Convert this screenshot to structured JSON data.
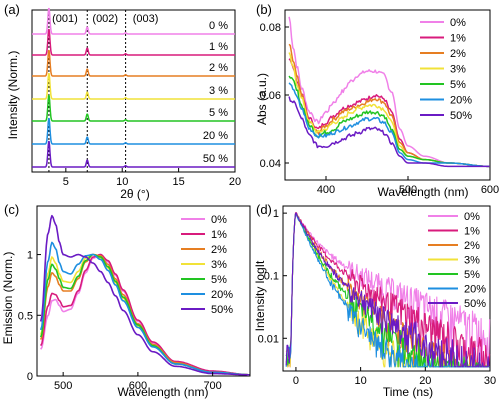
{
  "colors": [
    "#f080e8",
    "#d81b7c",
    "#e67e22",
    "#f1e238",
    "#22c422",
    "#1e8fe0",
    "#6a1bc4"
  ],
  "chart_data": [
    {
      "panel": "(a)",
      "type": "line",
      "xlabel": "2θ (°)",
      "ylabel": "Intensity (Norm.)",
      "xlim": [
        2,
        20
      ],
      "xticks": [
        5,
        10,
        15,
        20
      ],
      "peaks": [
        {
          "x": 3.5,
          "label": "(001)"
        },
        {
          "x": 6.9,
          "label": "(002)"
        },
        {
          "x": 10.3,
          "label": "(003)"
        }
      ],
      "series": [
        {
          "name": "0 %"
        },
        {
          "name": "1 %"
        },
        {
          "name": "2 %"
        },
        {
          "name": "3 %"
        },
        {
          "name": "5 %"
        },
        {
          "name": "20 %"
        },
        {
          "name": "50 %"
        }
      ]
    },
    {
      "panel": "(b)",
      "type": "line",
      "xlabel": "Wavelength (nm)",
      "ylabel": "Abs (a.u.)",
      "xlim": [
        350,
        600
      ],
      "ylim": [
        0.035,
        0.085
      ],
      "xticks": [
        400,
        500,
        600
      ],
      "yticks": [
        0.04,
        0.06,
        0.08
      ],
      "legend": "top-right",
      "series": [
        {
          "name": "0%",
          "x": [
            355,
            360,
            365,
            370,
            380,
            390,
            400,
            410,
            420,
            430,
            440,
            450,
            460,
            470,
            480,
            490,
            500,
            520,
            550,
            600
          ],
          "values": [
            0.083,
            0.074,
            0.068,
            0.062,
            0.055,
            0.052,
            0.055,
            0.058,
            0.061,
            0.064,
            0.066,
            0.067,
            0.067,
            0.066,
            0.061,
            0.05,
            0.045,
            0.042,
            0.04,
            0.039
          ]
        },
        {
          "name": "1%",
          "x": [
            355,
            360,
            365,
            370,
            380,
            390,
            400,
            410,
            420,
            430,
            440,
            450,
            460,
            470,
            480,
            490,
            500,
            520,
            550,
            600
          ],
          "values": [
            0.071,
            0.068,
            0.064,
            0.06,
            0.053,
            0.05,
            0.052,
            0.054,
            0.056,
            0.057,
            0.058,
            0.059,
            0.06,
            0.059,
            0.055,
            0.047,
            0.043,
            0.041,
            0.04,
            0.039
          ]
        },
        {
          "name": "2%",
          "x": [
            355,
            360,
            365,
            370,
            380,
            390,
            400,
            410,
            420,
            430,
            440,
            450,
            460,
            470,
            480,
            490,
            500,
            520,
            550,
            600
          ],
          "values": [
            0.075,
            0.07,
            0.065,
            0.06,
            0.052,
            0.049,
            0.051,
            0.053,
            0.055,
            0.056,
            0.057,
            0.058,
            0.059,
            0.058,
            0.054,
            0.046,
            0.043,
            0.041,
            0.04,
            0.039
          ]
        },
        {
          "name": "3%",
          "x": [
            355,
            360,
            365,
            370,
            380,
            390,
            400,
            410,
            420,
            430,
            440,
            450,
            460,
            470,
            480,
            490,
            500,
            520,
            550,
            600
          ],
          "values": [
            0.072,
            0.068,
            0.063,
            0.059,
            0.052,
            0.049,
            0.05,
            0.052,
            0.053,
            0.055,
            0.056,
            0.057,
            0.057,
            0.056,
            0.052,
            0.045,
            0.042,
            0.041,
            0.04,
            0.039
          ]
        },
        {
          "name": "5%",
          "x": [
            355,
            360,
            365,
            370,
            380,
            390,
            400,
            410,
            420,
            430,
            440,
            450,
            460,
            470,
            480,
            490,
            500,
            520,
            550,
            600
          ],
          "values": [
            0.066,
            0.064,
            0.061,
            0.057,
            0.051,
            0.048,
            0.049,
            0.05,
            0.052,
            0.053,
            0.054,
            0.055,
            0.055,
            0.054,
            0.05,
            0.044,
            0.042,
            0.041,
            0.04,
            0.039
          ]
        },
        {
          "name": "20%",
          "x": [
            355,
            360,
            365,
            370,
            380,
            390,
            400,
            410,
            420,
            430,
            440,
            450,
            460,
            470,
            480,
            490,
            500,
            520,
            550,
            600
          ],
          "values": [
            0.063,
            0.062,
            0.059,
            0.056,
            0.05,
            0.048,
            0.048,
            0.049,
            0.05,
            0.051,
            0.052,
            0.053,
            0.053,
            0.052,
            0.049,
            0.043,
            0.041,
            0.04,
            0.04,
            0.039
          ]
        },
        {
          "name": "50%",
          "x": [
            355,
            360,
            365,
            370,
            380,
            390,
            400,
            410,
            420,
            430,
            440,
            450,
            460,
            470,
            480,
            490,
            500,
            520,
            550,
            600
          ],
          "values": [
            0.059,
            0.058,
            0.056,
            0.053,
            0.048,
            0.045,
            0.045,
            0.046,
            0.047,
            0.048,
            0.049,
            0.05,
            0.05,
            0.049,
            0.046,
            0.042,
            0.04,
            0.04,
            0.039,
            0.039
          ]
        }
      ]
    },
    {
      "panel": "(c)",
      "type": "line",
      "xlabel": "Wavelength (nm)",
      "ylabel": "Emission (Norm.)",
      "xlim": [
        465,
        750
      ],
      "ylim": [
        0,
        1.4
      ],
      "xticks": [
        500,
        600,
        700
      ],
      "yticks": [
        0,
        0.5,
        1
      ],
      "yticklabels": [
        "0",
        "0.5",
        "1"
      ],
      "legend": "top-right",
      "series": [
        {
          "name": "0%",
          "x": [
            470,
            480,
            485,
            490,
            495,
            500,
            510,
            520,
            530,
            540,
            550,
            560,
            570,
            580,
            600,
            620,
            650,
            700,
            750
          ],
          "values": [
            0.22,
            0.5,
            0.62,
            0.63,
            0.58,
            0.53,
            0.55,
            0.68,
            0.85,
            0.97,
            1.0,
            0.94,
            0.83,
            0.7,
            0.45,
            0.27,
            0.12,
            0.04,
            0.01
          ]
        },
        {
          "name": "1%",
          "x": [
            470,
            480,
            485,
            490,
            495,
            500,
            510,
            520,
            530,
            540,
            550,
            560,
            570,
            580,
            600,
            620,
            650,
            700,
            750
          ],
          "values": [
            0.25,
            0.58,
            0.68,
            0.67,
            0.62,
            0.57,
            0.58,
            0.7,
            0.87,
            0.98,
            1.0,
            0.95,
            0.84,
            0.71,
            0.46,
            0.28,
            0.12,
            0.04,
            0.01
          ]
        },
        {
          "name": "2%",
          "x": [
            470,
            480,
            485,
            490,
            495,
            500,
            510,
            520,
            530,
            540,
            550,
            560,
            570,
            580,
            600,
            620,
            650,
            700,
            750
          ],
          "values": [
            0.3,
            0.74,
            0.85,
            0.82,
            0.75,
            0.7,
            0.7,
            0.8,
            0.94,
            1.0,
            0.99,
            0.92,
            0.8,
            0.67,
            0.43,
            0.26,
            0.11,
            0.03,
            0.01
          ]
        },
        {
          "name": "3%",
          "x": [
            470,
            480,
            485,
            490,
            495,
            500,
            510,
            520,
            530,
            540,
            550,
            560,
            570,
            580,
            600,
            620,
            650,
            700,
            750
          ],
          "values": [
            0.34,
            0.85,
            0.98,
            0.93,
            0.84,
            0.78,
            0.77,
            0.86,
            0.97,
            1.0,
            0.97,
            0.89,
            0.77,
            0.64,
            0.41,
            0.25,
            0.1,
            0.03,
            0.01
          ]
        },
        {
          "name": "5%",
          "x": [
            470,
            480,
            485,
            490,
            495,
            500,
            510,
            520,
            530,
            540,
            550,
            560,
            570,
            580,
            600,
            620,
            650,
            700,
            750
          ],
          "values": [
            0.32,
            0.8,
            0.92,
            0.88,
            0.8,
            0.73,
            0.72,
            0.82,
            0.95,
            1.0,
            0.98,
            0.9,
            0.78,
            0.65,
            0.42,
            0.25,
            0.1,
            0.03,
            0.01
          ]
        },
        {
          "name": "20%",
          "x": [
            470,
            480,
            485,
            490,
            495,
            500,
            510,
            520,
            530,
            540,
            550,
            560,
            570,
            580,
            600,
            620,
            650,
            700,
            750
          ],
          "values": [
            0.38,
            0.95,
            1.1,
            1.05,
            0.93,
            0.86,
            0.84,
            0.92,
            0.99,
            1.0,
            0.96,
            0.87,
            0.75,
            0.62,
            0.4,
            0.24,
            0.1,
            0.03,
            0.01
          ]
        },
        {
          "name": "50%",
          "x": [
            470,
            480,
            485,
            490,
            495,
            500,
            510,
            520,
            530,
            540,
            550,
            560,
            570,
            580,
            600,
            620,
            650,
            700,
            750
          ],
          "values": [
            0.45,
            1.18,
            1.32,
            1.25,
            1.1,
            1.0,
            0.98,
            1.0,
            0.98,
            0.93,
            0.86,
            0.77,
            0.66,
            0.54,
            0.34,
            0.2,
            0.08,
            0.02,
            0.01
          ]
        }
      ]
    },
    {
      "panel": "(d)",
      "type": "line",
      "xlabel": "Time (ns)",
      "ylabel": "Intensity logIt",
      "xlim": [
        -2,
        30
      ],
      "ylim": [
        0.003,
        1.3
      ],
      "yscale": "log",
      "xticks": [
        0,
        10,
        20,
        30
      ],
      "yticks": [
        0.01,
        0.1,
        1
      ],
      "yticklabels": [
        "0.01",
        "0.1",
        "1"
      ],
      "legend": "top-right",
      "series": [
        {
          "name": "0%",
          "tau1": 2.0,
          "tau2": 9.0,
          "a": 0.3,
          "noise": 0.003
        },
        {
          "name": "1%",
          "tau1": 2.0,
          "tau2": 7.0,
          "a": 0.28,
          "noise": 0.003
        },
        {
          "name": "2%",
          "tau1": 2.0,
          "tau2": 5.5,
          "a": 0.22,
          "noise": 0.004
        },
        {
          "name": "3%",
          "tau1": 1.8,
          "tau2": 4.0,
          "a": 0.18,
          "noise": 0.005
        },
        {
          "name": "5%",
          "tau1": 1.8,
          "tau2": 5.0,
          "a": 0.18,
          "noise": 0.005
        },
        {
          "name": "20%",
          "tau1": 1.7,
          "tau2": 4.0,
          "a": 0.16,
          "noise": 0.005
        },
        {
          "name": "50%",
          "tau1": 1.9,
          "tau2": 6.0,
          "a": 0.2,
          "noise": 0.006
        }
      ]
    }
  ]
}
